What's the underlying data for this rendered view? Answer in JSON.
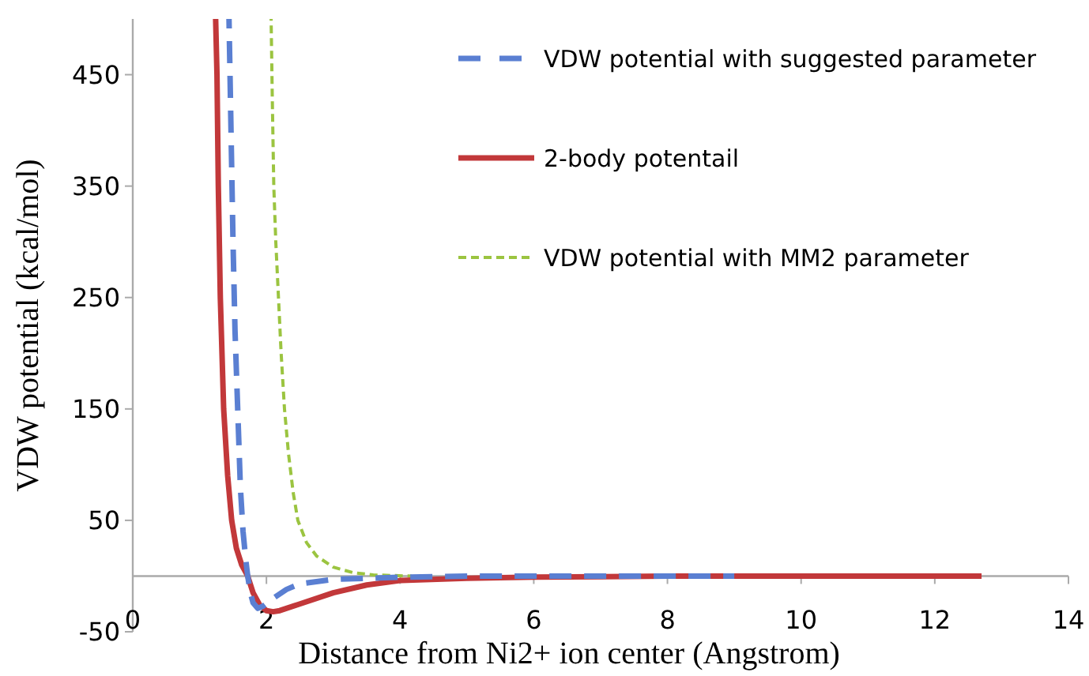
{
  "chart_data": {
    "type": "line",
    "xlabel": "Distance from Ni2+ ion center (Angstrom)",
    "ylabel": "VDW potential (kcal/mol)",
    "xlim": [
      0,
      14
    ],
    "xticks": [
      0,
      2,
      4,
      6,
      8,
      10,
      12,
      14
    ],
    "ylim": [
      -50,
      500
    ],
    "yticks": [
      -50,
      50,
      150,
      250,
      350,
      450
    ],
    "grid": false,
    "legend": "top right",
    "marker": "none",
    "series": [
      {
        "name": "VDW potential with suggested parameter",
        "color": "#5a7fd2",
        "line_style": "dashed",
        "x": [
          1.44,
          1.47,
          1.5,
          1.53,
          1.57,
          1.61,
          1.65,
          1.69,
          1.72,
          1.76,
          1.8,
          1.87,
          1.95,
          2.1,
          2.3,
          2.5,
          3,
          3.5,
          4,
          5,
          6,
          9
        ],
        "values": [
          500,
          400,
          300,
          220,
          150,
          80,
          40,
          15,
          0,
          -15,
          -24,
          -29,
          -27,
          -20,
          -12,
          -7,
          -3,
          -2,
          -1,
          0,
          0,
          0
        ]
      },
      {
        "name": "2-body potentail",
        "color": "#c2383a",
        "line_style": "solid",
        "x": [
          1.24,
          1.26,
          1.28,
          1.31,
          1.36,
          1.42,
          1.48,
          1.55,
          1.63,
          1.72,
          1.8,
          1.9,
          2.0,
          2.1,
          2.2,
          2.5,
          3,
          3.5,
          4,
          5,
          6,
          8,
          12.7
        ],
        "values": [
          500,
          450,
          350,
          250,
          150,
          90,
          50,
          25,
          10,
          0,
          -15,
          -26,
          -31,
          -32,
          -31,
          -25,
          -15,
          -8,
          -4,
          -2,
          -1,
          0,
          0
        ]
      },
      {
        "name": "VDW potential with MM2 parameter",
        "color": "#9bc440",
        "line_style": "dotted",
        "x": [
          2.07,
          2.09,
          2.11,
          2.14,
          2.18,
          2.22,
          2.27,
          2.33,
          2.4,
          2.47,
          2.6,
          2.75,
          3,
          3.3,
          3.6,
          4.17
        ],
        "values": [
          500,
          420,
          350,
          300,
          250,
          200,
          150,
          110,
          75,
          50,
          30,
          18,
          8,
          3,
          1,
          0
        ]
      }
    ]
  }
}
